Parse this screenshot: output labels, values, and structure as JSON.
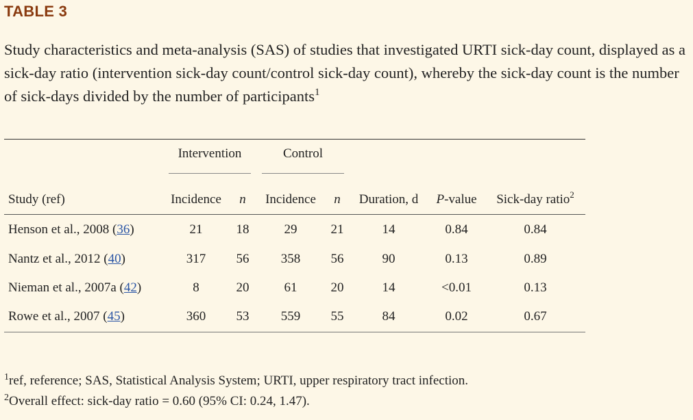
{
  "table_label": "TABLE 3",
  "caption": {
    "text": "Study characteristics and meta-analysis (SAS) of studies that investigated URTI sick-day count, displayed as a sick-day ratio (intervention sick-day count/control sick-day count), whereby the sick-day count is the number of sick-days divided by the number of participants",
    "sup": "1"
  },
  "groups": {
    "intervention": "Intervention",
    "control": "Control"
  },
  "columns": {
    "study": "Study (ref)",
    "int_incidence": "Incidence",
    "int_n": "n",
    "ctl_incidence": "Incidence",
    "ctl_n": "n",
    "duration": "Duration, d",
    "p_italic": "P",
    "p_rest": "-value",
    "ratio": "Sick-day ratio",
    "ratio_sup": "2"
  },
  "rows": [
    {
      "study": "Henson et al., 2008 (",
      "ref": "36",
      "close": ")",
      "int_incidence": "21",
      "int_n": "18",
      "ctl_incidence": "29",
      "ctl_n": "21",
      "duration": "14",
      "p": "0.84",
      "ratio": "0.84"
    },
    {
      "study": "Nantz et al., 2012 (",
      "ref": "40",
      "close": ")",
      "int_incidence": "317",
      "int_n": "56",
      "ctl_incidence": "358",
      "ctl_n": "56",
      "duration": "90",
      "p": "0.13",
      "ratio": "0.89"
    },
    {
      "study": "Nieman et al., 2007a (",
      "ref": "42",
      "close": ")",
      "int_incidence": "8",
      "int_n": "20",
      "ctl_incidence": "61",
      "ctl_n": "20",
      "duration": "14",
      "p": "<0.01",
      "ratio": "0.13"
    },
    {
      "study": "Rowe et al., 2007 (",
      "ref": "45",
      "close": ")",
      "int_incidence": "360",
      "int_n": "53",
      "ctl_incidence": "559",
      "ctl_n": "55",
      "duration": "84",
      "p": "0.02",
      "ratio": "0.67"
    }
  ],
  "footnotes": [
    {
      "sup": "1",
      "text": "ref, reference; SAS, Statistical Analysis System; URTI, upper respiratory tract infection."
    },
    {
      "sup": "2",
      "text": "Overall effect: sick-day ratio = 0.60 (95% CI: 0.24, 1.47)."
    }
  ],
  "colors": {
    "background": "#fdf7e7",
    "label": "#8a3b10",
    "link": "#2a55a5"
  }
}
